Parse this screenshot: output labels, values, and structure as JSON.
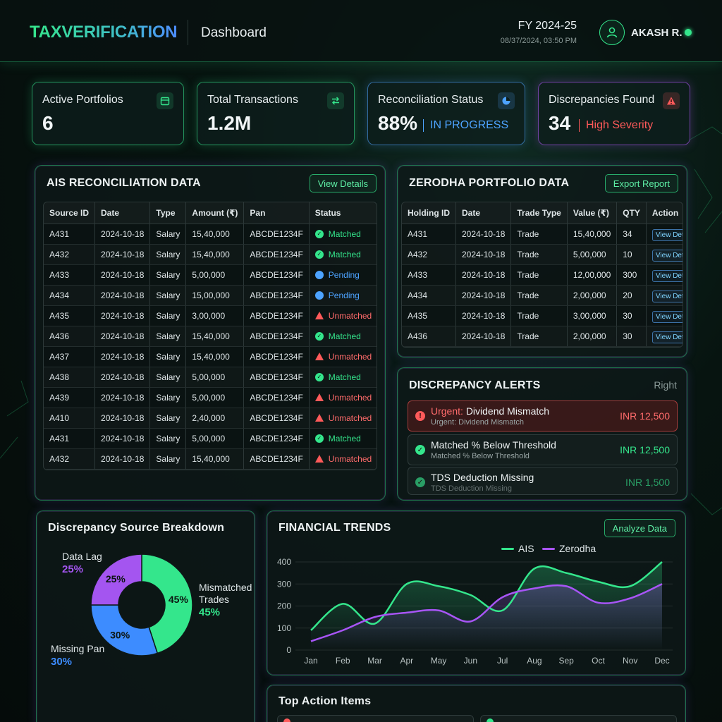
{
  "header": {
    "logo": "TAXVERIFICATION",
    "title": "Dashboard",
    "fiscal_year": "FY 2024-25",
    "datetime": "08/37/2024, 03:50 PM",
    "user_name": "AKASH R.",
    "avatar_icon": "user-icon",
    "online_color": "#34e68c"
  },
  "stats": [
    {
      "label": "Active Portfolios",
      "value": "6",
      "icon": "calendar-icon"
    },
    {
      "label": "Total Transactions",
      "value": "1.2M",
      "icon": "swap-arrows-icon"
    },
    {
      "label": "Reconciliation Status",
      "value": "88%",
      "sub": "IN PROGRESS",
      "icon": "pie-chart-icon"
    },
    {
      "label": "Discrepancies Found",
      "value": "34",
      "sub": "High Severity",
      "icon": "warning-icon"
    }
  ],
  "ais": {
    "title": "AIS RECONCILIATION DATA",
    "button": "View Details",
    "columns": [
      "Source ID",
      "Date",
      "Type",
      "Amount (₹)",
      "Pan",
      "Status"
    ],
    "rows": [
      [
        "A431",
        "2024-10-18",
        "Salary",
        "15,40,000",
        "ABCDE1234F",
        "Matched"
      ],
      [
        "A432",
        "2024-10-18",
        "Salary",
        "15,40,000",
        "ABCDE1234F",
        "Matched"
      ],
      [
        "A433",
        "2024-10-18",
        "Salary",
        "5,00,000",
        "ABCDE1234F",
        "Pending"
      ],
      [
        "A434",
        "2024-10-18",
        "Salary",
        "15,00,000",
        "ABCDE1234F",
        "Pending"
      ],
      [
        "A435",
        "2024-10-18",
        "Salary",
        "3,00,000",
        "ABCDE1234F",
        "Unmatched"
      ],
      [
        "A436",
        "2024-10-18",
        "Salary",
        "15,40,000",
        "ABCDE1234F",
        "Matched"
      ],
      [
        "A437",
        "2024-10-18",
        "Salary",
        "15,40,000",
        "ABCDE1234F",
        "Unmatched"
      ],
      [
        "A438",
        "2024-10-18",
        "Salary",
        "5,00,000",
        "ABCDE1234F",
        "Matched"
      ],
      [
        "A439",
        "2024-10-18",
        "Salary",
        "5,00,000",
        "ABCDE1234F",
        "Unmatched"
      ],
      [
        "A410",
        "2024-10-18",
        "Salary",
        "2,40,000",
        "ABCDE1234F",
        "Unmatched"
      ],
      [
        "A431",
        "2024-10-18",
        "Salary",
        "5,00,000",
        "ABCDE1234F",
        "Matched"
      ],
      [
        "A432",
        "2024-10-18",
        "Salary",
        "15,40,000",
        "ABCDE1234F",
        "Unmatched"
      ]
    ]
  },
  "zerodha": {
    "title": "ZERODHA PORTFOLIO DATA",
    "button": "Export Report",
    "columns": [
      "Holding ID",
      "Date",
      "Trade Type",
      "Value (₹)",
      "QTY",
      "Action"
    ],
    "rows": [
      [
        "A431",
        "2024-10-18",
        "Trade",
        "15,40,000",
        "34",
        "View Details"
      ],
      [
        "A432",
        "2024-10-18",
        "Trade",
        "5,00,000",
        "10",
        "View Details"
      ],
      [
        "A433",
        "2024-10-18",
        "Trade",
        "12,00,000",
        "300",
        "View Details"
      ],
      [
        "A434",
        "2024-10-18",
        "Trade",
        "2,00,000",
        "20",
        "View Details"
      ],
      [
        "A435",
        "2024-10-18",
        "Trade",
        "3,00,000",
        "30",
        "View Details"
      ],
      [
        "A436",
        "2024-10-18",
        "Trade",
        "2,00,000",
        "30",
        "View Details"
      ]
    ]
  },
  "alerts": {
    "title": "DISCREPANCY ALERTS",
    "corner": "Right",
    "items": [
      {
        "prefix": "Urgent:",
        "title": "Dividend Mismatch",
        "sub": "Urgent: Dividend Mismatch",
        "amount": "INR 12,500",
        "severity": "urgent"
      },
      {
        "prefix": "",
        "title": "Matched % Below Threshold",
        "sub": "Matched % Below Threshold",
        "amount": "INR 12,500",
        "severity": "ok"
      },
      {
        "prefix": "",
        "title": "TDS Deduction Missing",
        "sub": "TDS Deduction Missing",
        "amount": "INR 1,500",
        "severity": "ok"
      }
    ]
  },
  "breakdown": {
    "title": "Discrepancy Source Breakdown",
    "segments": [
      {
        "name": "Mismatched Trades",
        "line1": "Mismatched",
        "line2": "Trades",
        "percent": "45%",
        "value": 45,
        "color": "#34e68c"
      },
      {
        "name": "Missing Pan",
        "percent": "30%",
        "value": 30,
        "color": "#3d8cff"
      },
      {
        "name": "Data Lag",
        "percent": "25%",
        "value": 25,
        "color": "#a455f0"
      }
    ]
  },
  "trends": {
    "title": "FINANCIAL TRENDS",
    "button": "Analyze Data",
    "legend": [
      {
        "name": "AIS",
        "color": "#34e68c"
      },
      {
        "name": "Zerodha",
        "color": "#a855f7"
      }
    ]
  },
  "actions": {
    "title": "Top Action Items"
  },
  "chart_data": [
    {
      "type": "pie",
      "title": "Discrepancy Source Breakdown",
      "categories": [
        "Mismatched Trades",
        "Missing Pan",
        "Data Lag"
      ],
      "values": [
        45,
        30,
        25
      ]
    },
    {
      "type": "line",
      "title": "FINANCIAL TRENDS",
      "categories": [
        "Jan",
        "Feb",
        "Mar",
        "Apr",
        "May",
        "Jun",
        "Jul",
        "Aug",
        "Sep",
        "Oct",
        "Nov",
        "Dec"
      ],
      "yticks": [
        "0",
        "100",
        "200",
        "300",
        "400"
      ],
      "ylim": [
        0,
        400
      ],
      "grid": true,
      "legend": "top",
      "series": [
        {
          "name": "AIS",
          "color": "#34e68c",
          "values": [
            90,
            210,
            120,
            300,
            290,
            250,
            180,
            370,
            350,
            310,
            290,
            400
          ]
        },
        {
          "name": "Zerodha",
          "color": "#a855f7",
          "values": [
            40,
            90,
            150,
            170,
            180,
            130,
            240,
            280,
            290,
            215,
            235,
            300
          ]
        }
      ]
    }
  ]
}
